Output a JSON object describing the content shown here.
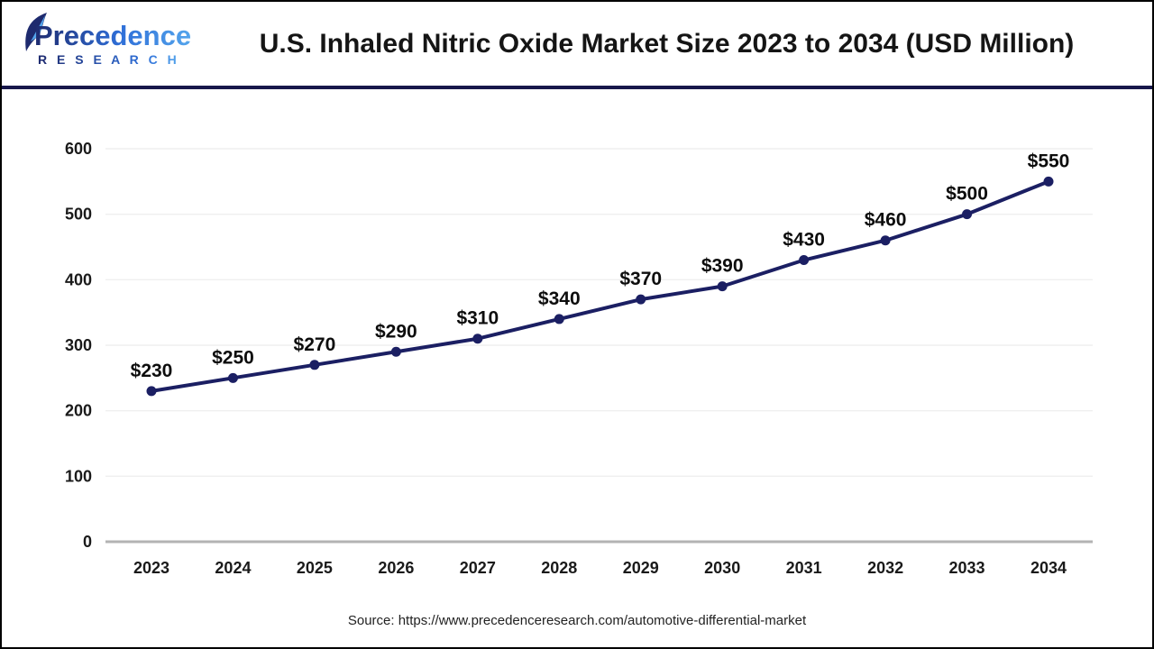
{
  "header": {
    "logo": {
      "line1": "Precedence",
      "line2": "R E S E A R C H"
    },
    "title": "U.S. Inhaled Nitric Oxide Market Size 2023 to 2034 (USD Million)"
  },
  "source_line": "Source: https://www.precedenceresearch.com/automotive-differential-market",
  "chart_data": {
    "type": "line",
    "title": "U.S. Inhaled Nitric Oxide Market Size 2023 to 2034 (USD Million)",
    "categories": [
      "2023",
      "2024",
      "2025",
      "2026",
      "2027",
      "2028",
      "2029",
      "2030",
      "2031",
      "2032",
      "2033",
      "2034"
    ],
    "values": [
      230,
      250,
      270,
      290,
      310,
      340,
      370,
      390,
      430,
      460,
      500,
      550
    ],
    "point_labels": [
      "$230",
      "$250",
      "$270",
      "$290",
      "$310",
      "$340",
      "$370",
      "$390",
      "$430",
      "$460",
      "$500",
      "$550"
    ],
    "xlabel": "",
    "ylabel": "",
    "ylim": [
      0,
      600
    ],
    "yticks": [
      0,
      100,
      200,
      300,
      400,
      500,
      600
    ],
    "grid": true,
    "legend": "none",
    "colors": {
      "line": "#1b1f63",
      "point": "#1b1f63",
      "grid": "#efefef",
      "zero_axis": "#b3b3b3",
      "tick_text": "#1a1a1a",
      "point_label_text": "#0d0d0d",
      "logo_dark": "#1e2a6e",
      "logo_mid": "#2f6fd8",
      "logo_light": "#54a5ec",
      "header_rule": "#17174b"
    }
  }
}
